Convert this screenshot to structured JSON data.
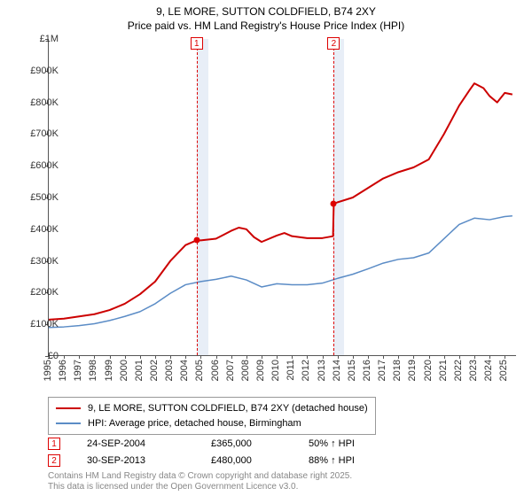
{
  "title": {
    "line1": "9, LE MORE, SUTTON COLDFIELD, B74 2XY",
    "line2": "Price paid vs. HM Land Registry's House Price Index (HPI)"
  },
  "chart": {
    "type": "line",
    "background_color": "#ffffff",
    "shade_color": "#e8eef7",
    "axis_color": "#555555",
    "x": {
      "min": 1995,
      "max": 2025.8,
      "ticks": [
        1995,
        1996,
        1997,
        1998,
        1999,
        2000,
        2001,
        2002,
        2003,
        2004,
        2005,
        2006,
        2007,
        2008,
        2009,
        2010,
        2011,
        2012,
        2013,
        2014,
        2015,
        2016,
        2017,
        2018,
        2019,
        2020,
        2021,
        2022,
        2023,
        2024,
        2025
      ]
    },
    "y": {
      "min": 0,
      "max": 1000000,
      "ticks": [
        0,
        100000,
        200000,
        300000,
        400000,
        500000,
        600000,
        700000,
        800000,
        900000,
        1000000
      ],
      "tick_labels": [
        "£0",
        "£100K",
        "£200K",
        "£300K",
        "£400K",
        "£500K",
        "£600K",
        "£700K",
        "£800K",
        "£900K",
        "£1M"
      ]
    },
    "shaded_bands": [
      {
        "from": 2004.73,
        "to": 2005.5
      },
      {
        "from": 2013.75,
        "to": 2014.4
      }
    ],
    "sale_lines": [
      {
        "x": 2004.73,
        "label": "1"
      },
      {
        "x": 2013.75,
        "label": "2"
      }
    ],
    "sale_points": [
      {
        "x": 2004.73,
        "y": 365000
      },
      {
        "x": 2013.75,
        "y": 480000
      }
    ],
    "series": [
      {
        "name": "price_paid",
        "label": "9, LE MORE, SUTTON COLDFIELD, B74 2XY (detached house)",
        "color": "#cc0000",
        "width": 2,
        "data": [
          [
            1995,
            115000
          ],
          [
            1996,
            118000
          ],
          [
            1997,
            125000
          ],
          [
            1998,
            132000
          ],
          [
            1999,
            145000
          ],
          [
            2000,
            165000
          ],
          [
            2001,
            195000
          ],
          [
            2002,
            235000
          ],
          [
            2003,
            300000
          ],
          [
            2004,
            350000
          ],
          [
            2004.73,
            365000
          ],
          [
            2005,
            365000
          ],
          [
            2006,
            370000
          ],
          [
            2007,
            395000
          ],
          [
            2007.5,
            405000
          ],
          [
            2008,
            400000
          ],
          [
            2008.5,
            375000
          ],
          [
            2009,
            360000
          ],
          [
            2010,
            380000
          ],
          [
            2010.5,
            388000
          ],
          [
            2011,
            378000
          ],
          [
            2012,
            372000
          ],
          [
            2013,
            372000
          ],
          [
            2013.7,
            378000
          ],
          [
            2013.75,
            480000
          ],
          [
            2014,
            485000
          ],
          [
            2015,
            500000
          ],
          [
            2016,
            530000
          ],
          [
            2017,
            560000
          ],
          [
            2018,
            580000
          ],
          [
            2019,
            595000
          ],
          [
            2020,
            620000
          ],
          [
            2021,
            700000
          ],
          [
            2022,
            790000
          ],
          [
            2022.7,
            840000
          ],
          [
            2023,
            860000
          ],
          [
            2023.6,
            845000
          ],
          [
            2024,
            820000
          ],
          [
            2024.5,
            800000
          ],
          [
            2025,
            830000
          ],
          [
            2025.5,
            825000
          ]
        ]
      },
      {
        "name": "hpi",
        "label": "HPI: Average price, detached house, Birmingham",
        "color": "#5b8cc6",
        "width": 1.5,
        "data": [
          [
            1995,
            90000
          ],
          [
            1996,
            92000
          ],
          [
            1997,
            96000
          ],
          [
            1998,
            102000
          ],
          [
            1999,
            112000
          ],
          [
            2000,
            125000
          ],
          [
            2001,
            140000
          ],
          [
            2002,
            165000
          ],
          [
            2003,
            198000
          ],
          [
            2004,
            225000
          ],
          [
            2005,
            235000
          ],
          [
            2006,
            242000
          ],
          [
            2007,
            252000
          ],
          [
            2008,
            240000
          ],
          [
            2009,
            218000
          ],
          [
            2010,
            228000
          ],
          [
            2011,
            225000
          ],
          [
            2012,
            225000
          ],
          [
            2013,
            230000
          ],
          [
            2014,
            245000
          ],
          [
            2015,
            258000
          ],
          [
            2016,
            275000
          ],
          [
            2017,
            293000
          ],
          [
            2018,
            305000
          ],
          [
            2019,
            310000
          ],
          [
            2020,
            325000
          ],
          [
            2021,
            370000
          ],
          [
            2022,
            415000
          ],
          [
            2023,
            435000
          ],
          [
            2024,
            430000
          ],
          [
            2025,
            440000
          ],
          [
            2025.5,
            442000
          ]
        ]
      }
    ]
  },
  "legend": {
    "items": [
      {
        "color": "#cc0000",
        "width": 2,
        "label": "9, LE MORE, SUTTON COLDFIELD, B74 2XY (detached house)"
      },
      {
        "color": "#5b8cc6",
        "width": 1.5,
        "label": "HPI: Average price, detached house, Birmingham"
      }
    ]
  },
  "sales": [
    {
      "num": "1",
      "date": "24-SEP-2004",
      "price": "£365,000",
      "vs_hpi": "50% ↑ HPI"
    },
    {
      "num": "2",
      "date": "30-SEP-2013",
      "price": "£480,000",
      "vs_hpi": "88% ↑ HPI"
    }
  ],
  "footer": {
    "line1": "Contains HM Land Registry data © Crown copyright and database right 2025.",
    "line2": "This data is licensed under the Open Government Licence v3.0."
  }
}
